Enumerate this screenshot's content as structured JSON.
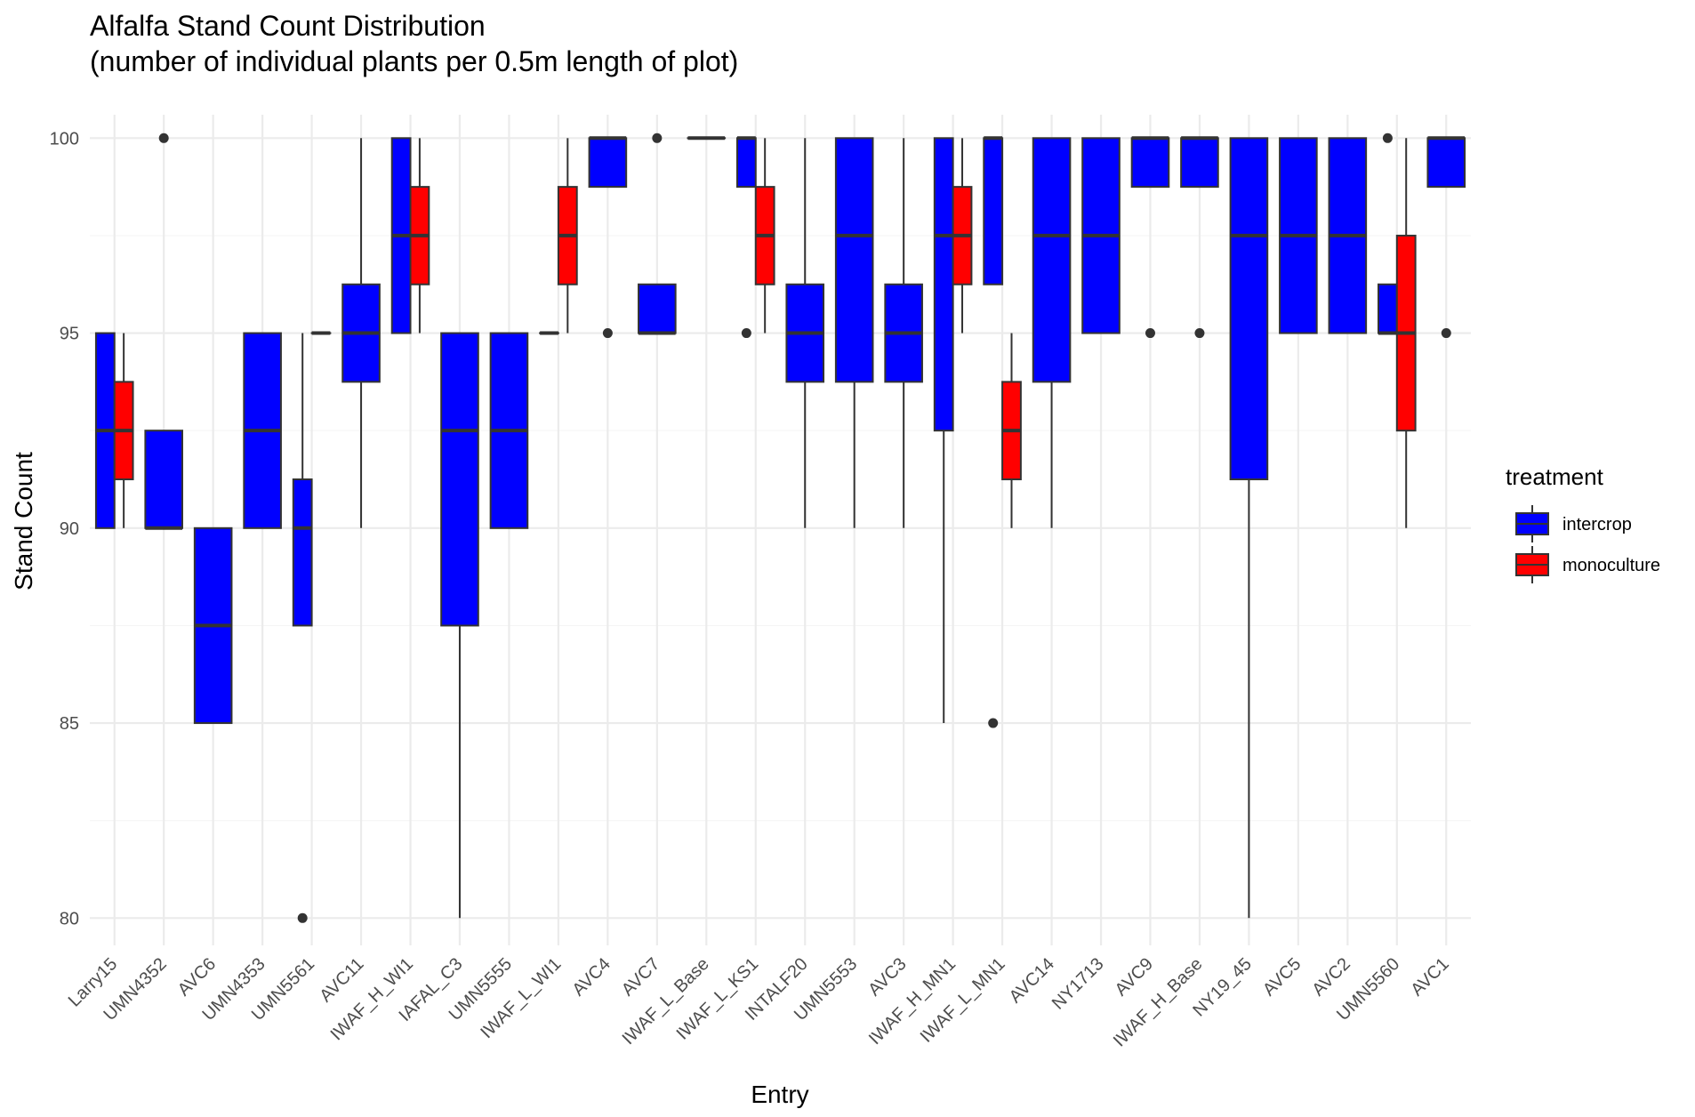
{
  "chart_data": {
    "type": "boxplot",
    "title": "Alfalfa Stand Count Distribution",
    "subtitle": "(number of individual plants per 0.5m length of plot)",
    "xlabel": "Entry",
    "ylabel": "Stand Count",
    "ylim": [
      79.3,
      100.6
    ],
    "y_ticks": [
      80,
      85,
      90,
      95,
      100
    ],
    "grid": true,
    "legend": {
      "title": "treatment",
      "position": "right",
      "items": [
        {
          "label": "intercrop",
          "color": "#0000ff"
        },
        {
          "label": "monoculture",
          "color": "#ff0000"
        }
      ]
    },
    "categories": [
      "Larry15",
      "UMN4352",
      "AVC6",
      "UMN4353",
      "UMN5561",
      "AVC11",
      "IWAF_H_WI1",
      "IAFAL_C3",
      "UMN5555",
      "IWAF_L_WI1",
      "AVC4",
      "AVC7",
      "IWAF_L_Base",
      "IWAF_L_KS1",
      "INTALF20",
      "UMN5553",
      "AVC3",
      "IWAF_H_MN1",
      "IWAF_L_MN1",
      "AVC14",
      "NY1713",
      "AVC9",
      "IWAF_H_Base",
      "NY19_45",
      "AVC5",
      "AVC2",
      "UMN5560",
      "AVC1"
    ],
    "boxes": [
      {
        "category": "Larry15",
        "treatment": "intercrop",
        "position": "left",
        "whisker_low": 90,
        "q1": 90,
        "median": 92.5,
        "q3": 95,
        "whisker_high": 95,
        "outliers": []
      },
      {
        "category": "Larry15",
        "treatment": "monoculture",
        "position": "right",
        "whisker_low": 90,
        "q1": 91.25,
        "median": 92.5,
        "q3": 93.75,
        "whisker_high": 95,
        "outliers": []
      },
      {
        "category": "UMN4352",
        "treatment": "intercrop",
        "position": "full",
        "whisker_low": 90,
        "q1": 90,
        "median": 90,
        "q3": 92.5,
        "whisker_high": 92.5,
        "outliers": [
          100
        ]
      },
      {
        "category": "AVC6",
        "treatment": "intercrop",
        "position": "full",
        "whisker_low": 85,
        "q1": 85,
        "median": 87.5,
        "q3": 90,
        "whisker_high": 90,
        "outliers": []
      },
      {
        "category": "UMN4353",
        "treatment": "intercrop",
        "position": "full",
        "whisker_low": 90,
        "q1": 90,
        "median": 92.5,
        "q3": 95,
        "whisker_high": 95,
        "outliers": []
      },
      {
        "category": "UMN5561",
        "treatment": "intercrop",
        "position": "left",
        "whisker_low": 87.5,
        "q1": 87.5,
        "median": 90,
        "q3": 91.25,
        "whisker_high": 95,
        "outliers": [
          80
        ]
      },
      {
        "category": "UMN5561",
        "treatment": "monoculture",
        "position": "right",
        "whisker_low": 95,
        "q1": 95,
        "median": 95,
        "q3": 95,
        "whisker_high": 95,
        "outliers": []
      },
      {
        "category": "AVC11",
        "treatment": "intercrop",
        "position": "full",
        "whisker_low": 90,
        "q1": 93.75,
        "median": 95,
        "q3": 96.25,
        "whisker_high": 100,
        "outliers": []
      },
      {
        "category": "IWAF_H_WI1",
        "treatment": "intercrop",
        "position": "left",
        "whisker_low": 95,
        "q1": 95,
        "median": 97.5,
        "q3": 100,
        "whisker_high": 100,
        "outliers": []
      },
      {
        "category": "IWAF_H_WI1",
        "treatment": "monoculture",
        "position": "right",
        "whisker_low": 95,
        "q1": 96.25,
        "median": 97.5,
        "q3": 98.75,
        "whisker_high": 100,
        "outliers": []
      },
      {
        "category": "IAFAL_C3",
        "treatment": "intercrop",
        "position": "full",
        "whisker_low": 80,
        "q1": 87.5,
        "median": 92.5,
        "q3": 95,
        "whisker_high": 95,
        "outliers": []
      },
      {
        "category": "UMN5555",
        "treatment": "intercrop",
        "position": "full",
        "whisker_low": 90,
        "q1": 90,
        "median": 92.5,
        "q3": 95,
        "whisker_high": 95,
        "outliers": []
      },
      {
        "category": "IWAF_L_WI1",
        "treatment": "intercrop",
        "position": "left",
        "whisker_low": 95,
        "q1": 95,
        "median": 95,
        "q3": 95,
        "whisker_high": 95,
        "outliers": []
      },
      {
        "category": "IWAF_L_WI1",
        "treatment": "monoculture",
        "position": "right",
        "whisker_low": 95,
        "q1": 96.25,
        "median": 97.5,
        "q3": 98.75,
        "whisker_high": 100,
        "outliers": []
      },
      {
        "category": "AVC4",
        "treatment": "intercrop",
        "position": "full",
        "whisker_low": 98.75,
        "q1": 98.75,
        "median": 100,
        "q3": 100,
        "whisker_high": 100,
        "outliers": [
          95
        ]
      },
      {
        "category": "AVC7",
        "treatment": "intercrop",
        "position": "full",
        "whisker_low": 95,
        "q1": 95,
        "median": 95,
        "q3": 96.25,
        "whisker_high": 96.25,
        "outliers": [
          100
        ]
      },
      {
        "category": "IWAF_L_Base",
        "treatment": "intercrop",
        "position": "full",
        "whisker_low": 100,
        "q1": 100,
        "median": 100,
        "q3": 100,
        "whisker_high": 100,
        "outliers": []
      },
      {
        "category": "IWAF_L_KS1",
        "treatment": "intercrop",
        "position": "left",
        "whisker_low": 98.75,
        "q1": 98.75,
        "median": 100,
        "q3": 100,
        "whisker_high": 100,
        "outliers": [
          95
        ]
      },
      {
        "category": "IWAF_L_KS1",
        "treatment": "monoculture",
        "position": "right",
        "whisker_low": 95,
        "q1": 96.25,
        "median": 97.5,
        "q3": 98.75,
        "whisker_high": 100,
        "outliers": []
      },
      {
        "category": "INTALF20",
        "treatment": "intercrop",
        "position": "full",
        "whisker_low": 90,
        "q1": 93.75,
        "median": 95,
        "q3": 96.25,
        "whisker_high": 100,
        "outliers": []
      },
      {
        "category": "UMN5553",
        "treatment": "intercrop",
        "position": "full",
        "whisker_low": 90,
        "q1": 93.75,
        "median": 97.5,
        "q3": 100,
        "whisker_high": 100,
        "outliers": []
      },
      {
        "category": "AVC3",
        "treatment": "intercrop",
        "position": "full",
        "whisker_low": 90,
        "q1": 93.75,
        "median": 95,
        "q3": 96.25,
        "whisker_high": 100,
        "outliers": []
      },
      {
        "category": "IWAF_H_MN1",
        "treatment": "intercrop",
        "position": "left",
        "whisker_low": 85,
        "q1": 92.5,
        "median": 97.5,
        "q3": 100,
        "whisker_high": 100,
        "outliers": []
      },
      {
        "category": "IWAF_H_MN1",
        "treatment": "monoculture",
        "position": "right",
        "whisker_low": 95,
        "q1": 96.25,
        "median": 97.5,
        "q3": 98.75,
        "whisker_high": 100,
        "outliers": []
      },
      {
        "category": "IWAF_L_MN1",
        "treatment": "intercrop",
        "position": "left",
        "whisker_low": 96.25,
        "q1": 96.25,
        "median": 100,
        "q3": 100,
        "whisker_high": 100,
        "outliers": [
          85
        ]
      },
      {
        "category": "IWAF_L_MN1",
        "treatment": "monoculture",
        "position": "right",
        "whisker_low": 90,
        "q1": 91.25,
        "median": 92.5,
        "q3": 93.75,
        "whisker_high": 95,
        "outliers": []
      },
      {
        "category": "AVC14",
        "treatment": "intercrop",
        "position": "full",
        "whisker_low": 90,
        "q1": 93.75,
        "median": 97.5,
        "q3": 100,
        "whisker_high": 100,
        "outliers": []
      },
      {
        "category": "NY1713",
        "treatment": "intercrop",
        "position": "full",
        "whisker_low": 95,
        "q1": 95,
        "median": 97.5,
        "q3": 100,
        "whisker_high": 100,
        "outliers": []
      },
      {
        "category": "AVC9",
        "treatment": "intercrop",
        "position": "full",
        "whisker_low": 98.75,
        "q1": 98.75,
        "median": 100,
        "q3": 100,
        "whisker_high": 100,
        "outliers": [
          95
        ]
      },
      {
        "category": "IWAF_H_Base",
        "treatment": "intercrop",
        "position": "full",
        "whisker_low": 98.75,
        "q1": 98.75,
        "median": 100,
        "q3": 100,
        "whisker_high": 100,
        "outliers": [
          95
        ]
      },
      {
        "category": "NY19_45",
        "treatment": "intercrop",
        "position": "full",
        "whisker_low": 80,
        "q1": 91.25,
        "median": 97.5,
        "q3": 100,
        "whisker_high": 100,
        "outliers": []
      },
      {
        "category": "AVC5",
        "treatment": "intercrop",
        "position": "full",
        "whisker_low": 95,
        "q1": 95,
        "median": 97.5,
        "q3": 100,
        "whisker_high": 100,
        "outliers": []
      },
      {
        "category": "AVC2",
        "treatment": "intercrop",
        "position": "full",
        "whisker_low": 95,
        "q1": 95,
        "median": 97.5,
        "q3": 100,
        "whisker_high": 100,
        "outliers": []
      },
      {
        "category": "UMN5560",
        "treatment": "intercrop",
        "position": "left",
        "whisker_low": 95,
        "q1": 95,
        "median": 95,
        "q3": 96.25,
        "whisker_high": 96.25,
        "outliers": [
          100
        ]
      },
      {
        "category": "UMN5560",
        "treatment": "monoculture",
        "position": "right",
        "whisker_low": 90,
        "q1": 92.5,
        "median": 95,
        "q3": 97.5,
        "whisker_high": 100,
        "outliers": []
      },
      {
        "category": "AVC1",
        "treatment": "intercrop",
        "position": "full",
        "whisker_low": 98.75,
        "q1": 98.75,
        "median": 100,
        "q3": 100,
        "whisker_high": 100,
        "outliers": [
          95
        ]
      }
    ]
  },
  "colors": {
    "intercrop": "#0000ff",
    "monoculture": "#ff0000",
    "box_outline": "#333333",
    "grid_major": "#ebebeb",
    "grid_minor": "#f5f5f5",
    "tick_text": "#4d4d4d"
  }
}
